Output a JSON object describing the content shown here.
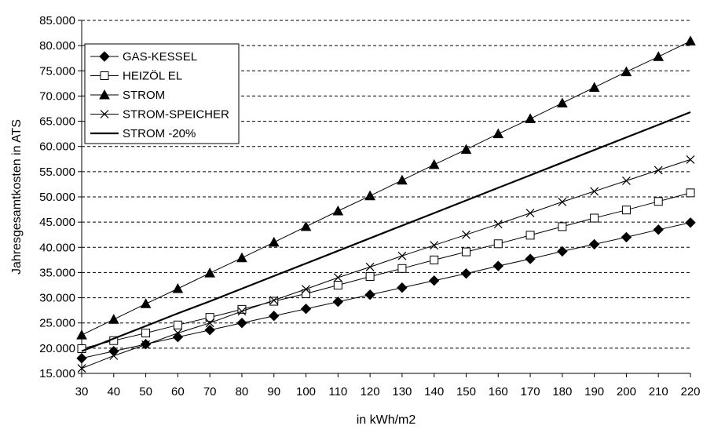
{
  "chart_data": {
    "type": "line",
    "title": "",
    "xlabel": "in kWh/m2",
    "ylabel": "Jahresgesamtkosten in ATS",
    "x": [
      30,
      40,
      50,
      60,
      70,
      80,
      90,
      100,
      110,
      120,
      130,
      140,
      150,
      160,
      170,
      180,
      190,
      200,
      210,
      220
    ],
    "x_tick_labels": [
      "30",
      "40",
      "50",
      "60",
      "70",
      "80",
      "90",
      "100",
      "110",
      "120",
      "130",
      "140",
      "150",
      "160",
      "170",
      "180",
      "190",
      "200",
      "210",
      "220"
    ],
    "ylim": [
      15000,
      85000
    ],
    "y_ticks": [
      15000,
      20000,
      25000,
      30000,
      35000,
      40000,
      45000,
      50000,
      55000,
      60000,
      65000,
      70000,
      75000,
      80000,
      85000
    ],
    "y_tick_labels": [
      "15.000",
      "20.000",
      "25.000",
      "30.000",
      "35.000",
      "40.000",
      "45.000",
      "50.000",
      "55.000",
      "60.000",
      "65.000",
      "70.000",
      "75.000",
      "80.000",
      "85.000"
    ],
    "grid": "horizontal dashed",
    "legend_position": "top-left",
    "series": [
      {
        "name": "GAS-KESSEL",
        "marker": "diamond-filled",
        "line_width": "thin",
        "values": [
          18000,
          19400,
          20800,
          22200,
          23600,
          25000,
          26400,
          27800,
          29200,
          30600,
          32000,
          33400,
          34800,
          36300,
          37700,
          39200,
          40600,
          42000,
          43500,
          44900
        ]
      },
      {
        "name": "HEIZÖL EL",
        "marker": "square-open",
        "line_width": "thin",
        "values": [
          19900,
          21500,
          23000,
          24600,
          26100,
          27700,
          29300,
          30800,
          32500,
          34200,
          35800,
          37500,
          39100,
          40700,
          42400,
          44100,
          45800,
          47400,
          49100,
          50800
        ]
      },
      {
        "name": "STROM",
        "marker": "triangle-filled",
        "line_width": "thin",
        "values": [
          22600,
          25700,
          28800,
          31800,
          34900,
          37900,
          41000,
          44100,
          47200,
          50200,
          53300,
          56400,
          59400,
          62500,
          65500,
          68600,
          71700,
          74800,
          77800,
          80900
        ]
      },
      {
        "name": "STROM-SPEICHER",
        "marker": "x",
        "line_width": "thin",
        "values": [
          16000,
          18500,
          20700,
          23000,
          25000,
          27300,
          29500,
          31700,
          34000,
          36100,
          38300,
          40400,
          42500,
          44600,
          46800,
          49000,
          51100,
          53200,
          55300,
          57400
        ]
      },
      {
        "name": "STROM -20%",
        "marker": "none",
        "line_width": "thick",
        "values": [
          19400,
          21900,
          24400,
          26900,
          29300,
          31800,
          34300,
          36800,
          39300,
          41800,
          44300,
          46800,
          49300,
          51800,
          54300,
          56800,
          59300,
          61800,
          64300,
          66800
        ]
      }
    ]
  }
}
